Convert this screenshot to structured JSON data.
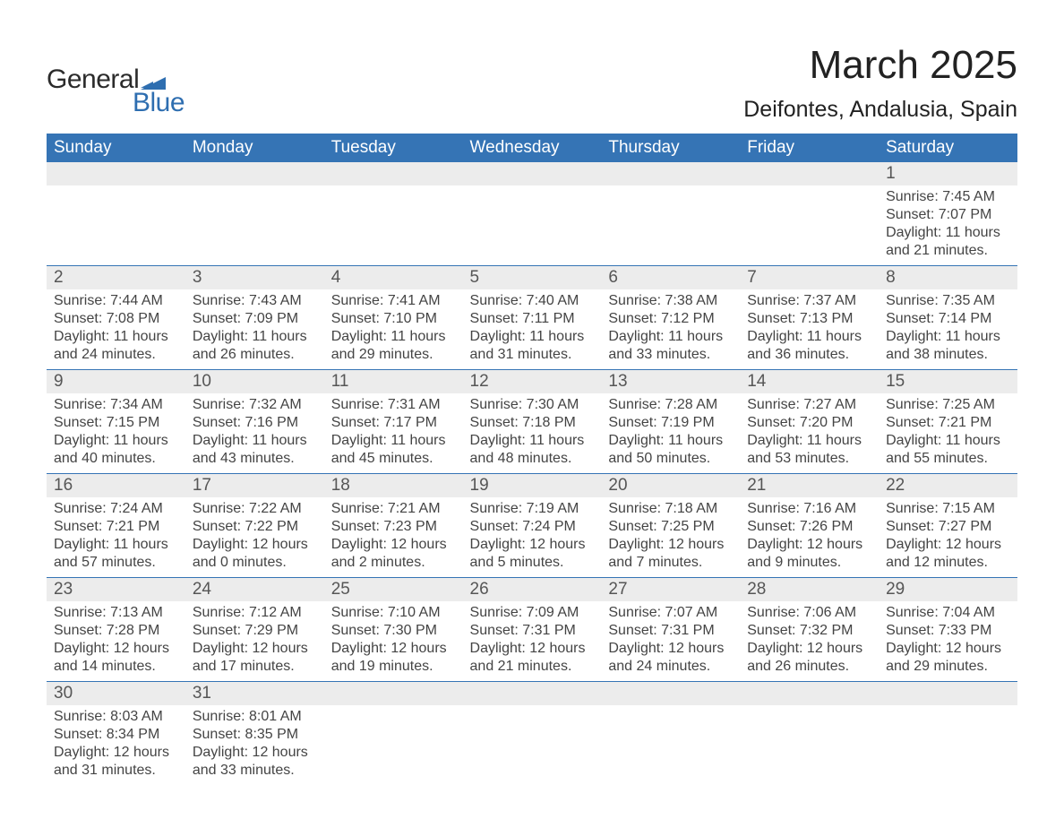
{
  "logo": {
    "text_general": "General",
    "text_blue": "Blue",
    "flag_color": "#2e6eb0"
  },
  "title": "March 2025",
  "location": "Deifontes, Andalusia, Spain",
  "colors": {
    "header_bg": "#3574b5",
    "header_text": "#ffffff",
    "daynum_bg": "#ececec",
    "rule": "#3574b5",
    "text": "#3b3b3b"
  },
  "fonts": {
    "title_size": 44,
    "location_size": 25,
    "header_size": 19,
    "daynum_size": 19,
    "detail_size": 16
  },
  "day_columns": [
    "Sunday",
    "Monday",
    "Tuesday",
    "Wednesday",
    "Thursday",
    "Friday",
    "Saturday"
  ],
  "weeks": [
    [
      null,
      null,
      null,
      null,
      null,
      null,
      {
        "n": "1",
        "sr": "Sunrise: 7:45 AM",
        "ss": "Sunset: 7:07 PM",
        "d1": "Daylight: 11 hours",
        "d2": "and 21 minutes."
      }
    ],
    [
      {
        "n": "2",
        "sr": "Sunrise: 7:44 AM",
        "ss": "Sunset: 7:08 PM",
        "d1": "Daylight: 11 hours",
        "d2": "and 24 minutes."
      },
      {
        "n": "3",
        "sr": "Sunrise: 7:43 AM",
        "ss": "Sunset: 7:09 PM",
        "d1": "Daylight: 11 hours",
        "d2": "and 26 minutes."
      },
      {
        "n": "4",
        "sr": "Sunrise: 7:41 AM",
        "ss": "Sunset: 7:10 PM",
        "d1": "Daylight: 11 hours",
        "d2": "and 29 minutes."
      },
      {
        "n": "5",
        "sr": "Sunrise: 7:40 AM",
        "ss": "Sunset: 7:11 PM",
        "d1": "Daylight: 11 hours",
        "d2": "and 31 minutes."
      },
      {
        "n": "6",
        "sr": "Sunrise: 7:38 AM",
        "ss": "Sunset: 7:12 PM",
        "d1": "Daylight: 11 hours",
        "d2": "and 33 minutes."
      },
      {
        "n": "7",
        "sr": "Sunrise: 7:37 AM",
        "ss": "Sunset: 7:13 PM",
        "d1": "Daylight: 11 hours",
        "d2": "and 36 minutes."
      },
      {
        "n": "8",
        "sr": "Sunrise: 7:35 AM",
        "ss": "Sunset: 7:14 PM",
        "d1": "Daylight: 11 hours",
        "d2": "and 38 minutes."
      }
    ],
    [
      {
        "n": "9",
        "sr": "Sunrise: 7:34 AM",
        "ss": "Sunset: 7:15 PM",
        "d1": "Daylight: 11 hours",
        "d2": "and 40 minutes."
      },
      {
        "n": "10",
        "sr": "Sunrise: 7:32 AM",
        "ss": "Sunset: 7:16 PM",
        "d1": "Daylight: 11 hours",
        "d2": "and 43 minutes."
      },
      {
        "n": "11",
        "sr": "Sunrise: 7:31 AM",
        "ss": "Sunset: 7:17 PM",
        "d1": "Daylight: 11 hours",
        "d2": "and 45 minutes."
      },
      {
        "n": "12",
        "sr": "Sunrise: 7:30 AM",
        "ss": "Sunset: 7:18 PM",
        "d1": "Daylight: 11 hours",
        "d2": "and 48 minutes."
      },
      {
        "n": "13",
        "sr": "Sunrise: 7:28 AM",
        "ss": "Sunset: 7:19 PM",
        "d1": "Daylight: 11 hours",
        "d2": "and 50 minutes."
      },
      {
        "n": "14",
        "sr": "Sunrise: 7:27 AM",
        "ss": "Sunset: 7:20 PM",
        "d1": "Daylight: 11 hours",
        "d2": "and 53 minutes."
      },
      {
        "n": "15",
        "sr": "Sunrise: 7:25 AM",
        "ss": "Sunset: 7:21 PM",
        "d1": "Daylight: 11 hours",
        "d2": "and 55 minutes."
      }
    ],
    [
      {
        "n": "16",
        "sr": "Sunrise: 7:24 AM",
        "ss": "Sunset: 7:21 PM",
        "d1": "Daylight: 11 hours",
        "d2": "and 57 minutes."
      },
      {
        "n": "17",
        "sr": "Sunrise: 7:22 AM",
        "ss": "Sunset: 7:22 PM",
        "d1": "Daylight: 12 hours",
        "d2": "and 0 minutes."
      },
      {
        "n": "18",
        "sr": "Sunrise: 7:21 AM",
        "ss": "Sunset: 7:23 PM",
        "d1": "Daylight: 12 hours",
        "d2": "and 2 minutes."
      },
      {
        "n": "19",
        "sr": "Sunrise: 7:19 AM",
        "ss": "Sunset: 7:24 PM",
        "d1": "Daylight: 12 hours",
        "d2": "and 5 minutes."
      },
      {
        "n": "20",
        "sr": "Sunrise: 7:18 AM",
        "ss": "Sunset: 7:25 PM",
        "d1": "Daylight: 12 hours",
        "d2": "and 7 minutes."
      },
      {
        "n": "21",
        "sr": "Sunrise: 7:16 AM",
        "ss": "Sunset: 7:26 PM",
        "d1": "Daylight: 12 hours",
        "d2": "and 9 minutes."
      },
      {
        "n": "22",
        "sr": "Sunrise: 7:15 AM",
        "ss": "Sunset: 7:27 PM",
        "d1": "Daylight: 12 hours",
        "d2": "and 12 minutes."
      }
    ],
    [
      {
        "n": "23",
        "sr": "Sunrise: 7:13 AM",
        "ss": "Sunset: 7:28 PM",
        "d1": "Daylight: 12 hours",
        "d2": "and 14 minutes."
      },
      {
        "n": "24",
        "sr": "Sunrise: 7:12 AM",
        "ss": "Sunset: 7:29 PM",
        "d1": "Daylight: 12 hours",
        "d2": "and 17 minutes."
      },
      {
        "n": "25",
        "sr": "Sunrise: 7:10 AM",
        "ss": "Sunset: 7:30 PM",
        "d1": "Daylight: 12 hours",
        "d2": "and 19 minutes."
      },
      {
        "n": "26",
        "sr": "Sunrise: 7:09 AM",
        "ss": "Sunset: 7:31 PM",
        "d1": "Daylight: 12 hours",
        "d2": "and 21 minutes."
      },
      {
        "n": "27",
        "sr": "Sunrise: 7:07 AM",
        "ss": "Sunset: 7:31 PM",
        "d1": "Daylight: 12 hours",
        "d2": "and 24 minutes."
      },
      {
        "n": "28",
        "sr": "Sunrise: 7:06 AM",
        "ss": "Sunset: 7:32 PM",
        "d1": "Daylight: 12 hours",
        "d2": "and 26 minutes."
      },
      {
        "n": "29",
        "sr": "Sunrise: 7:04 AM",
        "ss": "Sunset: 7:33 PM",
        "d1": "Daylight: 12 hours",
        "d2": "and 29 minutes."
      }
    ],
    [
      {
        "n": "30",
        "sr": "Sunrise: 8:03 AM",
        "ss": "Sunset: 8:34 PM",
        "d1": "Daylight: 12 hours",
        "d2": "and 31 minutes."
      },
      {
        "n": "31",
        "sr": "Sunrise: 8:01 AM",
        "ss": "Sunset: 8:35 PM",
        "d1": "Daylight: 12 hours",
        "d2": "and 33 minutes."
      },
      null,
      null,
      null,
      null,
      null
    ]
  ]
}
